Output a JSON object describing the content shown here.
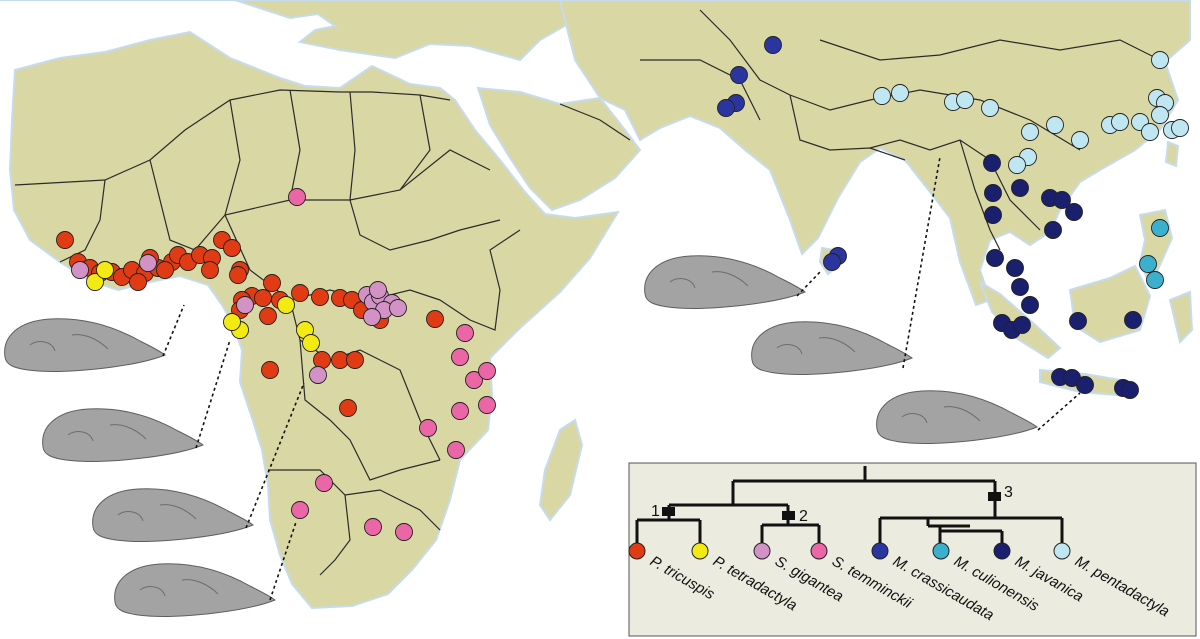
{
  "map": {
    "colors": {
      "ocean": "#ffffff",
      "land": "#d9d7a3",
      "coast_tint": "#c6dbee",
      "border": "#2b2b2b",
      "skull": "#a3a3a3",
      "legend_bg": "#ebebdf"
    },
    "species": [
      {
        "key": "tricuspis",
        "name": "P. tricuspis",
        "color": "#e03b14"
      },
      {
        "key": "tetradactyla",
        "name": "P. tetradactyla",
        "color": "#f2ea12"
      },
      {
        "key": "gigantea",
        "name": "S. gigantea",
        "color": "#d292c6"
      },
      {
        "key": "temminckii",
        "name": "S. temminckii",
        "color": "#ea66a6"
      },
      {
        "key": "crassicaudata",
        "name": "M. crassicaudata",
        "color": "#2b35a0"
      },
      {
        "key": "culionensis",
        "name": "M. culionensis",
        "color": "#3bb0cc"
      },
      {
        "key": "javanica",
        "name": "M. javanica",
        "color": "#1a1f6e"
      },
      {
        "key": "pentadactyla",
        "name": "M. pentadactyla",
        "color": "#bfe6f1"
      }
    ],
    "tree_nodes": [
      "1",
      "2",
      "3"
    ]
  }
}
